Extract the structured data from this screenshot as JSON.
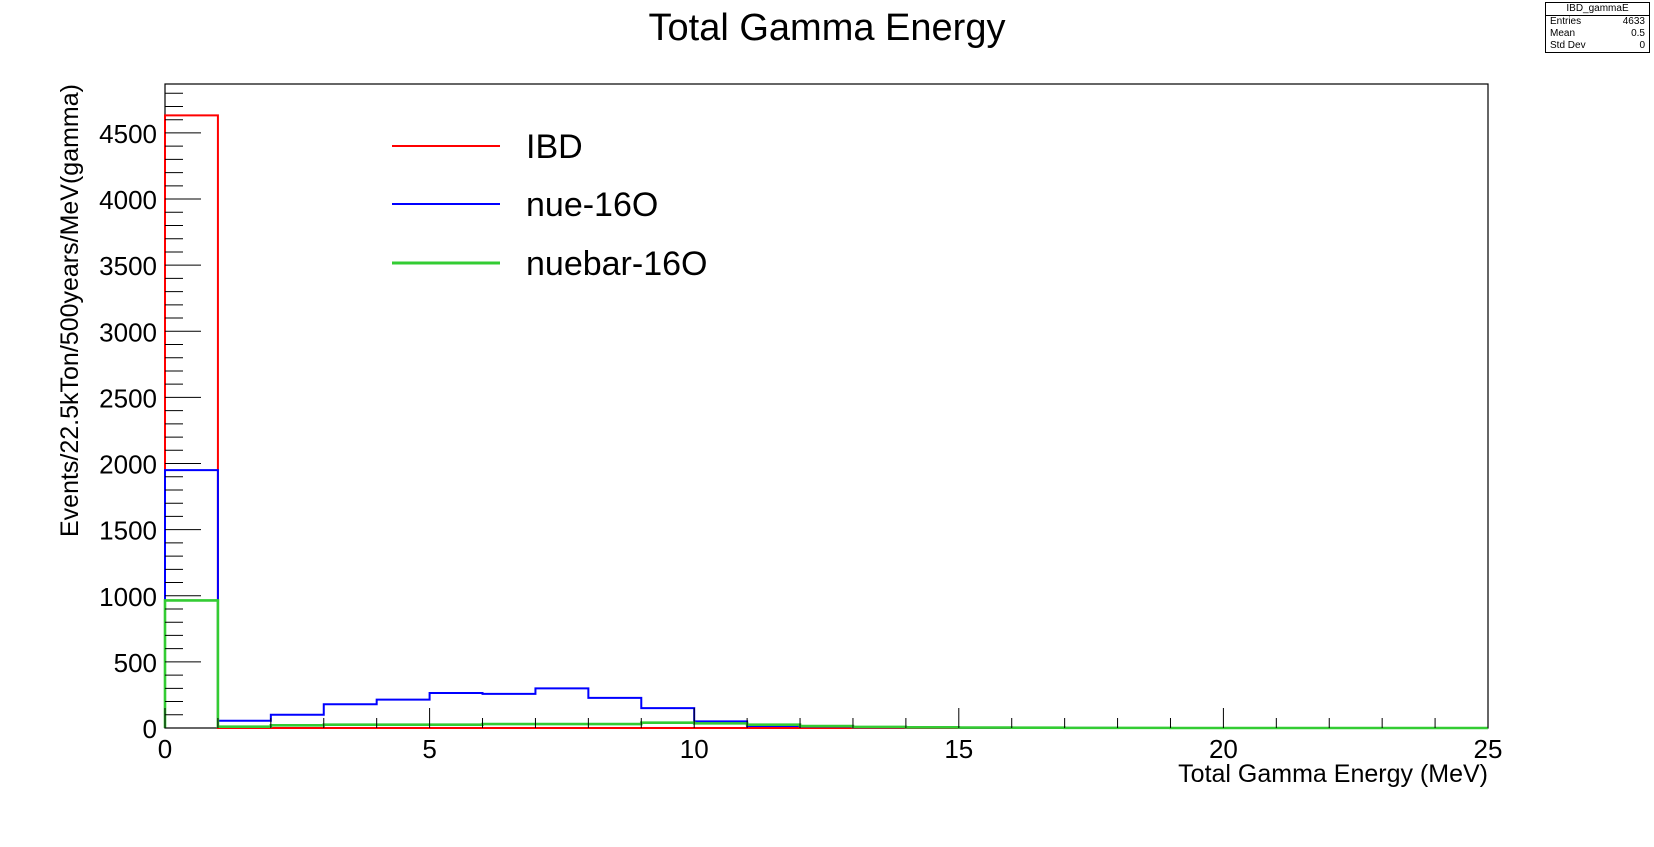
{
  "stats_box": {
    "title": "IBD_gammaE",
    "rows": [
      {
        "label": "Entries",
        "value": "4633"
      },
      {
        "label": "Mean",
        "value": "0.5"
      },
      {
        "label": "Std Dev",
        "value": "0"
      }
    ]
  },
  "chart_data": {
    "type": "histogram",
    "title": "Total Gamma Energy",
    "xlabel": "Total Gamma Energy (MeV)",
    "ylabel": "Events/22.5kTon/500years/MeV(gamma)",
    "xlim": [
      0,
      25
    ],
    "ylim": [
      0,
      4870
    ],
    "x_ticks": [
      0,
      5,
      10,
      15,
      20,
      25
    ],
    "y_ticks": [
      0,
      500,
      1000,
      1500,
      2000,
      2500,
      3000,
      3500,
      4000,
      4500
    ],
    "bin_width": 1,
    "legend_position": "top-left",
    "series": [
      {
        "name": "IBD",
        "color": "#ff0000",
        "values": [
          4633,
          0,
          0,
          0,
          0,
          0,
          0,
          0,
          0,
          0,
          0,
          0,
          0,
          0,
          0,
          0,
          0,
          0,
          0,
          0,
          0,
          0,
          0,
          0,
          0
        ]
      },
      {
        "name": "nue-16O",
        "color": "#0000ff",
        "values": [
          1950,
          55,
          100,
          180,
          215,
          265,
          258,
          300,
          228,
          150,
          50,
          15,
          10,
          5,
          3,
          2,
          1,
          1,
          0,
          0,
          0,
          0,
          0,
          0,
          0
        ]
      },
      {
        "name": "nuebar-16O",
        "color": "#33cc33",
        "values": [
          965,
          10,
          20,
          25,
          25,
          25,
          30,
          30,
          30,
          40,
          35,
          25,
          15,
          8,
          5,
          3,
          2,
          1,
          1,
          0,
          0,
          0,
          0,
          0,
          0
        ]
      }
    ]
  }
}
